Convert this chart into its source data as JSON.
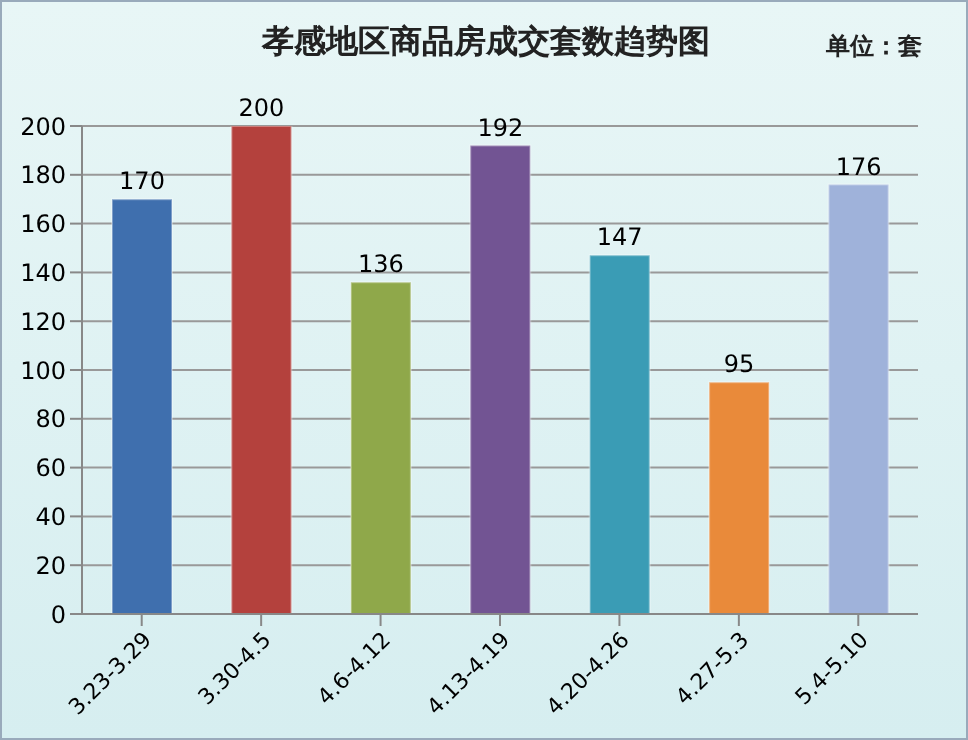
{
  "chart_data": {
    "type": "bar",
    "title": "孝感地区商品房成交套数趋势图",
    "annotations": [
      "单位：套"
    ],
    "categories": [
      "3.23-3.29",
      "3.30-4.5",
      "4.6-4.12",
      "4.13-4.19",
      "4.20-4.26",
      "4.27-5.3",
      "5.4-5.10"
    ],
    "values": [
      170,
      200,
      136,
      192,
      147,
      95,
      176
    ],
    "colors": [
      "#3f6fae",
      "#b4413d",
      "#8fa84a",
      "#725493",
      "#3a9cb5",
      "#e98a3a",
      "#9fb2da"
    ],
    "ylim": [
      0,
      200
    ],
    "yticks": [
      0,
      20,
      40,
      60,
      80,
      100,
      120,
      140,
      160,
      180,
      200
    ],
    "grid": "y",
    "data_labels": true,
    "legend": false
  }
}
